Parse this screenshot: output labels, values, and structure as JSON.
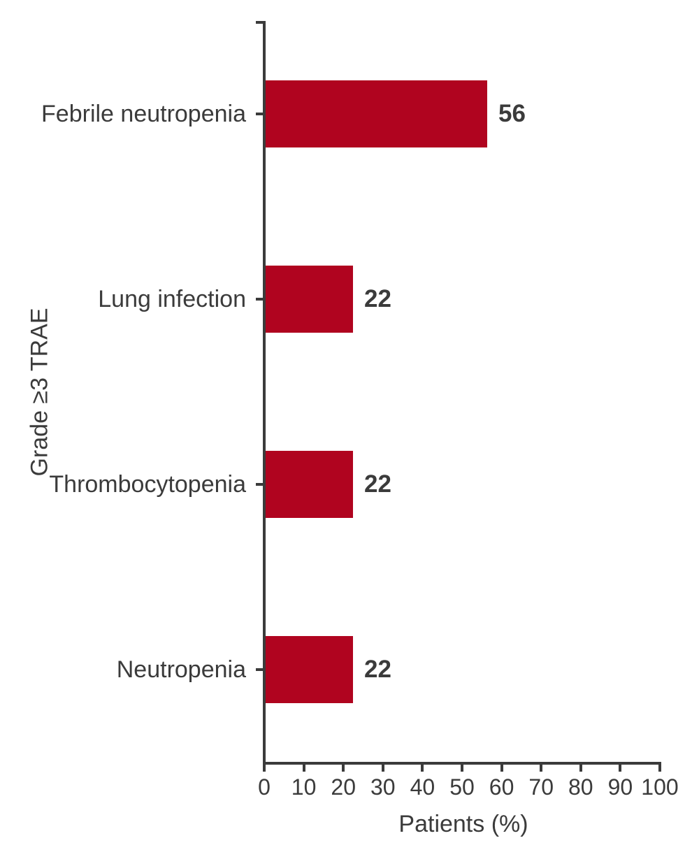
{
  "figure": {
    "background_color": "#ffffff"
  },
  "chart_data": {
    "type": "bar",
    "orientation": "horizontal",
    "title": "",
    "categories": [
      "Febrile neutropenia",
      "Lung infection",
      "Thrombocytopenia",
      "Neutropenia"
    ],
    "values": [
      56,
      22,
      22,
      22
    ],
    "xlabel": "Patients (%)",
    "ylabel": "Grade ≥3 TRAE",
    "xlim": [
      0,
      100
    ],
    "xticks": [
      0,
      10,
      20,
      30,
      40,
      50,
      60,
      70,
      80,
      90,
      100
    ],
    "grid": false,
    "legend": "none",
    "bar_color": "#b0041f",
    "axis_color": "#3b3b3b",
    "text_color": "#3b3b3b"
  }
}
